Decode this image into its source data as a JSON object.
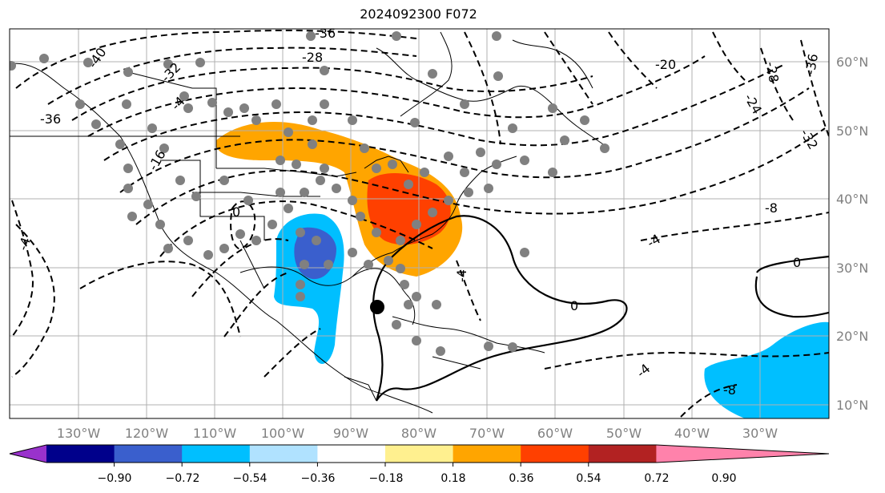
{
  "title": "2024092300 F072",
  "longitude_labels": [
    "130°W",
    "120°W",
    "110°W",
    "100°W",
    "90°W",
    "80°W",
    "70°W",
    "60°W",
    "50°W",
    "40°W",
    "30°W"
  ],
  "latitude_labels": [
    "60°N",
    "50°N",
    "40°N",
    "30°N",
    "20°N",
    "10°N"
  ],
  "contour_labels": [
    "-36",
    "-40",
    "-32",
    "-36",
    "-28",
    "-20",
    "-28",
    "-36",
    "-24",
    "-32",
    "-8",
    "-4",
    "-16",
    "-4",
    "0",
    "-4",
    "0",
    "0",
    "-4",
    "-8",
    "-4"
  ],
  "colorbar": {
    "tick_labels": [
      "−0.90",
      "−0.72",
      "−0.54",
      "−0.36",
      "−0.18",
      "0.18",
      "0.36",
      "0.54",
      "0.72",
      "0.90"
    ],
    "colors": [
      "#9932cc",
      "#00008b",
      "#3a5fcd",
      "#00bfff",
      "#b0e2ff",
      "#ffffff",
      "#fff08f",
      "#ffa500",
      "#ff4000",
      "#b22222",
      "#ff82ab"
    ]
  },
  "marker": "storm-center-marker"
}
